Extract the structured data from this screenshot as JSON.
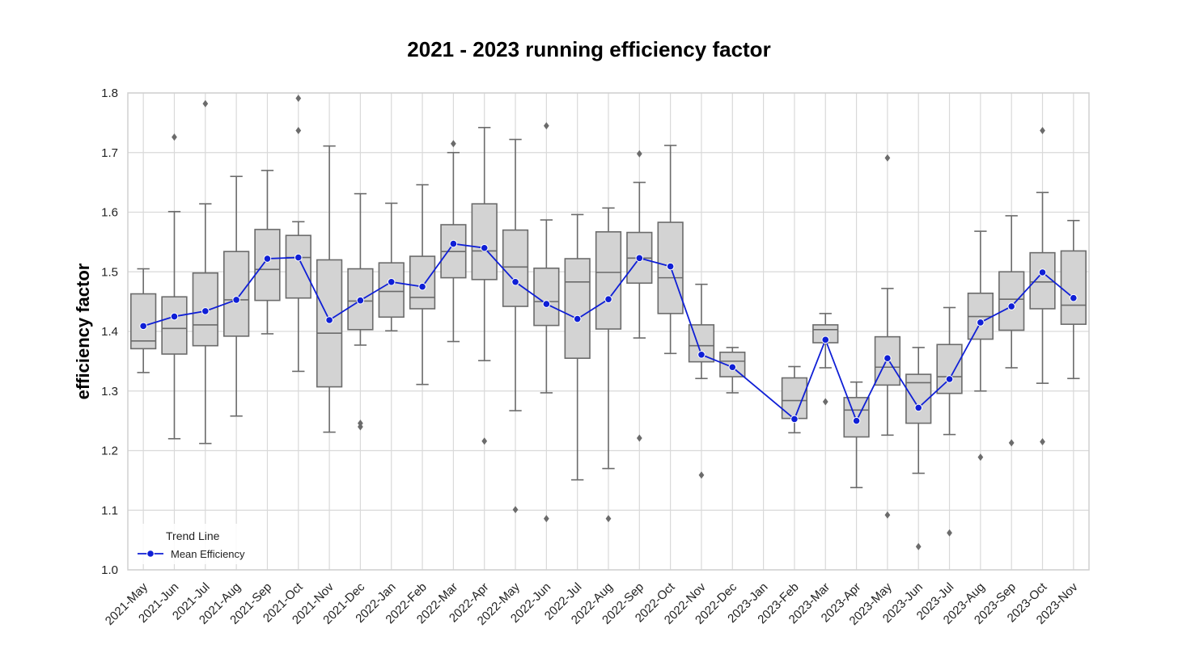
{
  "chart_data": {
    "type": "box",
    "title": "2021 - 2023 running efficiency factor",
    "xlabel": "",
    "ylabel": "efficiency factor",
    "ylim": [
      1.0,
      1.8
    ],
    "yticks": [
      "1.0",
      "1.1",
      "1.2",
      "1.3",
      "1.4",
      "1.5",
      "1.6",
      "1.7",
      "1.8"
    ],
    "grid": true,
    "colors": {
      "box_fill": "#d3d3d3",
      "box_edge": "#6b6b6b",
      "trend": "#0f1fd6",
      "grid": "#d9d9d9"
    },
    "categories": [
      "2021-May",
      "2021-Jun",
      "2021-Jul",
      "2021-Aug",
      "2021-Sep",
      "2021-Oct",
      "2021-Nov",
      "2021-Dec",
      "2022-Jan",
      "2022-Feb",
      "2022-Mar",
      "2022-Apr",
      "2022-May",
      "2022-Jun",
      "2022-Jul",
      "2022-Aug",
      "2022-Sep",
      "2022-Oct",
      "2022-Nov",
      "2022-Dec",
      "2023-Jan",
      "2023-Feb",
      "2023-Mar",
      "2023-Apr",
      "2023-May",
      "2023-Jun",
      "2023-Jul",
      "2023-Aug",
      "2023-Sep",
      "2023-Oct",
      "2023-Nov"
    ],
    "boxes": [
      {
        "whislo": 1.331,
        "q1": 1.371,
        "med": 1.384,
        "q3": 1.463,
        "whishi": 1.505,
        "fliers": []
      },
      {
        "whislo": 1.22,
        "q1": 1.362,
        "med": 1.405,
        "q3": 1.458,
        "whishi": 1.601,
        "fliers": [
          1.726
        ]
      },
      {
        "whislo": 1.212,
        "q1": 1.376,
        "med": 1.411,
        "q3": 1.498,
        "whishi": 1.614,
        "fliers": [
          1.782
        ]
      },
      {
        "whislo": 1.258,
        "q1": 1.392,
        "med": 1.453,
        "q3": 1.534,
        "whishi": 1.66,
        "fliers": []
      },
      {
        "whislo": 1.396,
        "q1": 1.452,
        "med": 1.504,
        "q3": 1.571,
        "whishi": 1.67,
        "fliers": []
      },
      {
        "whislo": 1.333,
        "q1": 1.456,
        "med": 1.524,
        "q3": 1.561,
        "whishi": 1.584,
        "fliers": [
          1.737,
          1.791
        ]
      },
      {
        "whislo": 1.231,
        "q1": 1.307,
        "med": 1.397,
        "q3": 1.52,
        "whishi": 1.711,
        "fliers": []
      },
      {
        "whislo": 1.377,
        "q1": 1.403,
        "med": 1.451,
        "q3": 1.505,
        "whishi": 1.631,
        "fliers": [
          1.24,
          1.246
        ]
      },
      {
        "whislo": 1.401,
        "q1": 1.424,
        "med": 1.467,
        "q3": 1.515,
        "whishi": 1.615,
        "fliers": []
      },
      {
        "whislo": 1.311,
        "q1": 1.438,
        "med": 1.457,
        "q3": 1.526,
        "whishi": 1.646,
        "fliers": []
      },
      {
        "whislo": 1.383,
        "q1": 1.49,
        "med": 1.534,
        "q3": 1.579,
        "whishi": 1.7,
        "fliers": [
          1.715
        ]
      },
      {
        "whislo": 1.351,
        "q1": 1.487,
        "med": 1.535,
        "q3": 1.614,
        "whishi": 1.742,
        "fliers": [
          1.216
        ]
      },
      {
        "whislo": 1.267,
        "q1": 1.442,
        "med": 1.508,
        "q3": 1.57,
        "whishi": 1.722,
        "fliers": [
          1.101
        ]
      },
      {
        "whislo": 1.297,
        "q1": 1.41,
        "med": 1.45,
        "q3": 1.506,
        "whishi": 1.587,
        "fliers": [
          1.086,
          1.745
        ]
      },
      {
        "whislo": 1.151,
        "q1": 1.355,
        "med": 1.483,
        "q3": 1.522,
        "whishi": 1.596,
        "fliers": []
      },
      {
        "whislo": 1.17,
        "q1": 1.404,
        "med": 1.499,
        "q3": 1.567,
        "whishi": 1.607,
        "fliers": [
          1.086
        ]
      },
      {
        "whislo": 1.389,
        "q1": 1.481,
        "med": 1.523,
        "q3": 1.566,
        "whishi": 1.65,
        "fliers": [
          1.221,
          1.698
        ]
      },
      {
        "whislo": 1.363,
        "q1": 1.43,
        "med": 1.49,
        "q3": 1.583,
        "whishi": 1.712,
        "fliers": []
      },
      {
        "whislo": 1.321,
        "q1": 1.349,
        "med": 1.376,
        "q3": 1.411,
        "whishi": 1.479,
        "fliers": [
          1.159
        ]
      },
      {
        "whislo": 1.297,
        "q1": 1.324,
        "med": 1.35,
        "q3": 1.365,
        "whishi": 1.373,
        "fliers": []
      },
      null,
      {
        "whislo": 1.23,
        "q1": 1.254,
        "med": 1.284,
        "q3": 1.322,
        "whishi": 1.341,
        "fliers": []
      },
      {
        "whislo": 1.339,
        "q1": 1.381,
        "med": 1.403,
        "q3": 1.411,
        "whishi": 1.43,
        "fliers": [
          1.282
        ]
      },
      {
        "whislo": 1.138,
        "q1": 1.223,
        "med": 1.268,
        "q3": 1.289,
        "whishi": 1.315,
        "fliers": []
      },
      {
        "whislo": 1.226,
        "q1": 1.31,
        "med": 1.34,
        "q3": 1.391,
        "whishi": 1.472,
        "fliers": [
          1.092,
          1.691
        ]
      },
      {
        "whislo": 1.162,
        "q1": 1.246,
        "med": 1.314,
        "q3": 1.328,
        "whishi": 1.373,
        "fliers": [
          1.039
        ]
      },
      {
        "whislo": 1.227,
        "q1": 1.296,
        "med": 1.324,
        "q3": 1.378,
        "whishi": 1.44,
        "fliers": [
          1.062
        ]
      },
      {
        "whislo": 1.3,
        "q1": 1.387,
        "med": 1.425,
        "q3": 1.464,
        "whishi": 1.568,
        "fliers": [
          1.189
        ]
      },
      {
        "whislo": 1.339,
        "q1": 1.402,
        "med": 1.454,
        "q3": 1.5,
        "whishi": 1.594,
        "fliers": [
          1.213
        ]
      },
      {
        "whislo": 1.313,
        "q1": 1.438,
        "med": 1.483,
        "q3": 1.532,
        "whishi": 1.633,
        "fliers": [
          1.215,
          1.737
        ]
      },
      {
        "whislo": 1.321,
        "q1": 1.412,
        "med": 1.444,
        "q3": 1.535,
        "whishi": 1.586,
        "fliers": []
      }
    ],
    "series": [
      {
        "name": "Mean Efficiency",
        "values": [
          1.409,
          1.425,
          1.434,
          1.453,
          1.522,
          1.524,
          1.419,
          1.452,
          1.483,
          1.475,
          1.547,
          1.54,
          1.483,
          1.446,
          1.421,
          1.454,
          1.523,
          1.509,
          1.361,
          1.34,
          null,
          1.253,
          1.386,
          1.25,
          1.355,
          1.272,
          1.32,
          1.415,
          1.442,
          1.499,
          1.456
        ]
      }
    ],
    "legend": {
      "title": "Trend Line",
      "placement": "lower-left"
    }
  }
}
